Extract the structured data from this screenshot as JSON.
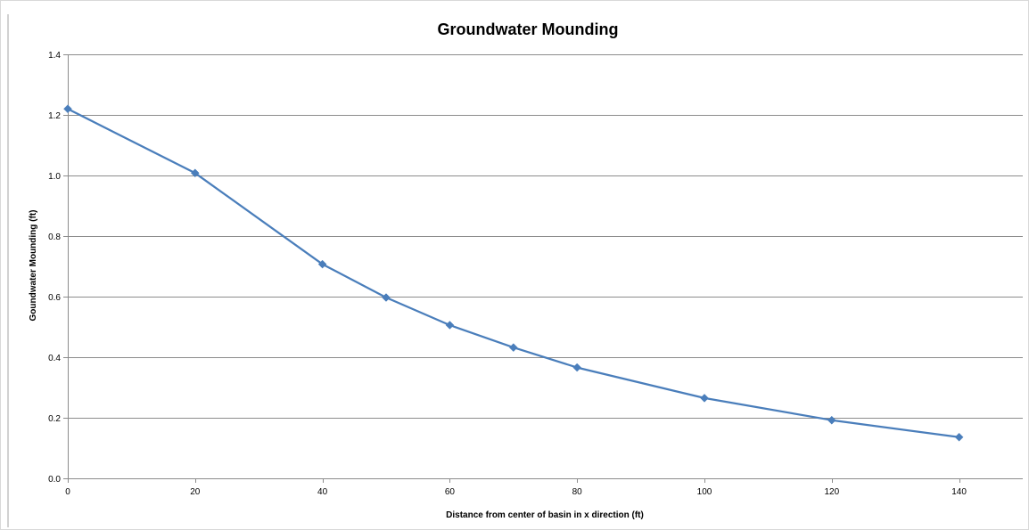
{
  "chart_data": {
    "type": "line",
    "title": "Groundwater Mounding",
    "xlabel": "Distance from center of basin in x direction (ft)",
    "ylabel": "Goundwater Mounding (ft)",
    "x_ticks": [
      "0",
      "20",
      "40",
      "60",
      "80",
      "100",
      "120",
      "140"
    ],
    "y_ticks": [
      "0.0",
      "0.2",
      "0.4",
      "0.6",
      "0.8",
      "1.0",
      "1.2",
      "1.4"
    ],
    "xlim": [
      0,
      150
    ],
    "ylim": [
      0,
      1.4
    ],
    "grid": {
      "horizontal": true,
      "vertical": false
    },
    "legend": "none",
    "colors": {
      "series": "#4a7ebb",
      "grid": "#8c8c8c",
      "border": "#a6a6a6"
    },
    "series": [
      {
        "x": [
          0,
          20,
          40,
          50,
          60,
          70,
          80,
          100,
          120,
          140
        ],
        "y": [
          1.22,
          1.008,
          0.707,
          0.597,
          0.506,
          0.432,
          0.366,
          0.265,
          0.192,
          0.136
        ],
        "marker": "diamond"
      }
    ]
  }
}
